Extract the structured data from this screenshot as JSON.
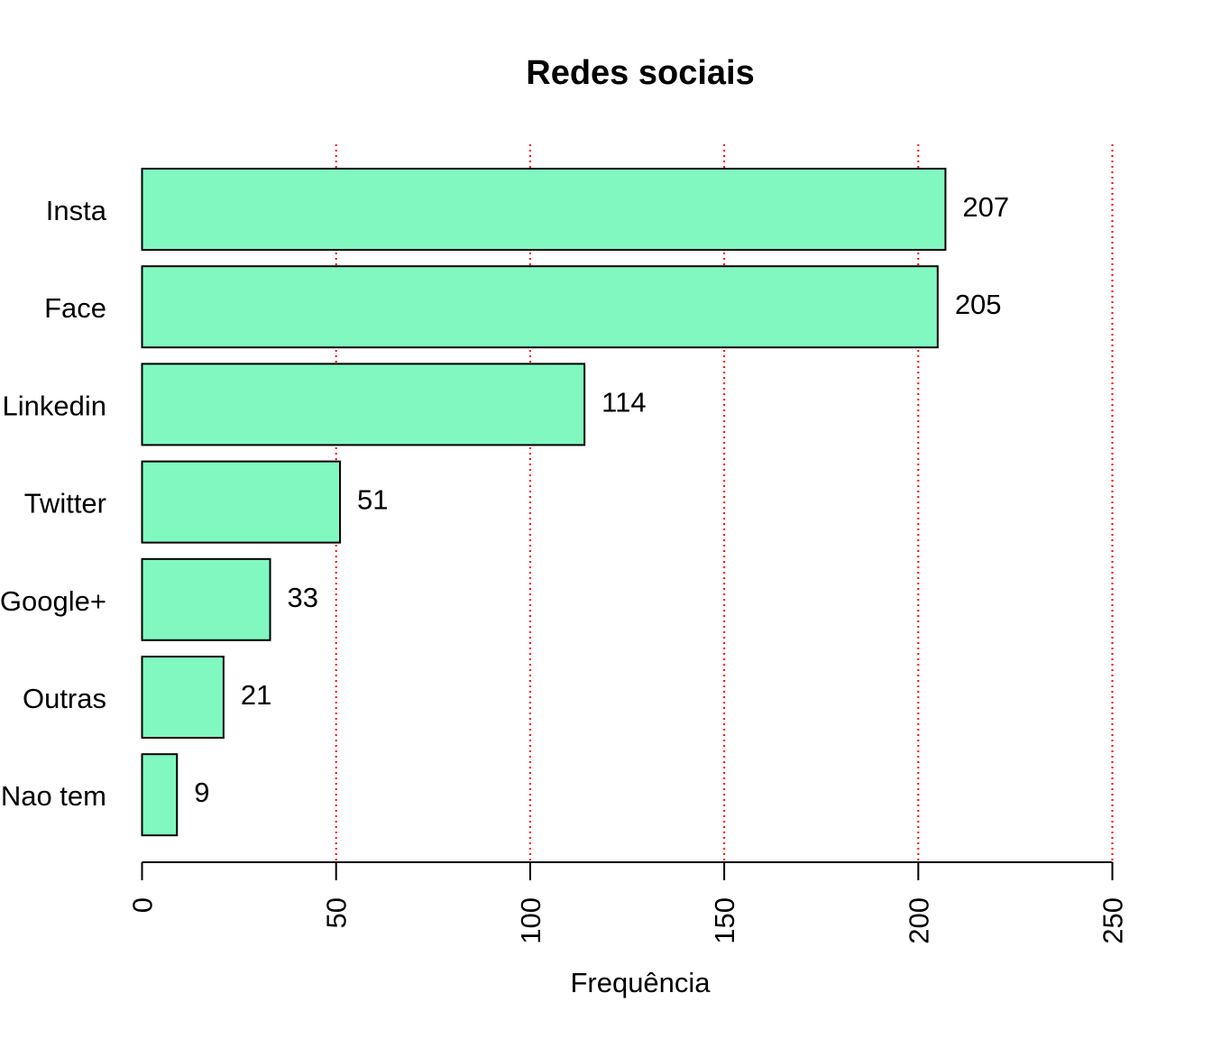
{
  "chart_data": {
    "type": "bar",
    "orientation": "horizontal",
    "title": "Redes sociais",
    "xlabel": "Frequência",
    "ylabel": "",
    "categories": [
      "Insta",
      "Face",
      "Linkedin",
      "Twitter",
      "Google+",
      "Outras",
      "Nao tem"
    ],
    "values": [
      207,
      205,
      114,
      51,
      33,
      21,
      9
    ],
    "data_labels": [
      "207",
      "205",
      "114",
      "51",
      "33",
      "21",
      "9"
    ],
    "xlim": [
      0,
      250
    ],
    "x_ticks": [
      0,
      50,
      100,
      150,
      200,
      250
    ],
    "x_tick_labels": [
      "0",
      "50",
      "100",
      "150",
      "200",
      "250"
    ],
    "grid": {
      "enabled": true,
      "orientation": "vertical",
      "at": [
        50,
        100,
        150,
        200,
        250
      ],
      "style": "dotted",
      "color": "#ff0000"
    },
    "bar_color": "#80f8c0",
    "bar_border_color": "#000000",
    "legend": "none"
  }
}
